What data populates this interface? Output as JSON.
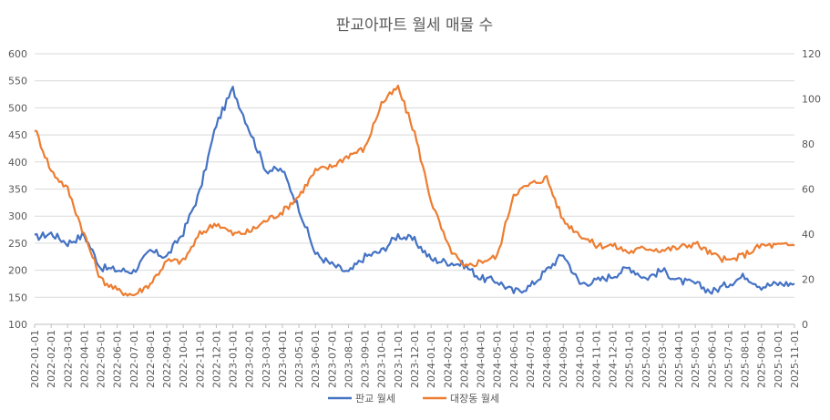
{
  "chart_data": {
    "type": "line",
    "title": "판교아파트 월세 매물 수",
    "xlabel": "",
    "ylabel": "",
    "x": [
      "2022-01-01",
      "2022-02-01",
      "2022-03-01",
      "2022-04-01",
      "2022-05-01",
      "2022-06-01",
      "2022-07-01",
      "2022-08-01",
      "2022-09-01",
      "2022-10-01",
      "2022-11-01",
      "2022-12-01",
      "2023-01-01",
      "2023-02-01",
      "2023-03-01",
      "2023-04-01",
      "2023-05-01",
      "2023-06-01",
      "2023-07-01",
      "2023-08-01",
      "2023-09-01",
      "2023-10-01",
      "2023-11-01",
      "2023-12-01",
      "2024-01-01",
      "2024-02-01",
      "2024-03-01",
      "2024-04-01",
      "2024-05-01",
      "2024-06-01",
      "2024-07-01",
      "2024-08-01",
      "2024-09-01",
      "2024-10-01",
      "2024-11-01",
      "2024-12-01",
      "2025-01-01",
      "2025-02-01",
      "2025-03-01",
      "2025-04-01",
      "2025-05-01",
      "2025-06-01",
      "2025-07-01",
      "2025-08-01",
      "2025-09-01",
      "2025-10-01",
      "2025-11-01"
    ],
    "y_left": {
      "min": 100,
      "max": 600,
      "ticks": [
        "600",
        "550",
        "500",
        "450",
        "400",
        "350",
        "300",
        "250",
        "200",
        "150",
        "100"
      ]
    },
    "y_right": {
      "min": 0,
      "max": 120,
      "ticks": [
        "120",
        "100",
        "80",
        "60",
        "40",
        "20",
        "0"
      ]
    },
    "grid": true,
    "legend_position": "bottom",
    "series": [
      {
        "name": "판교 월세",
        "axis": "left",
        "color": "#4472C4",
        "values": [
          260,
          268,
          250,
          265,
          205,
          200,
          198,
          235,
          225,
          270,
          345,
          470,
          535,
          460,
          385,
          385,
          315,
          230,
          210,
          195,
          225,
          235,
          265,
          255,
          220,
          215,
          210,
          185,
          180,
          160,
          170,
          200,
          230,
          175,
          180,
          190,
          205,
          185,
          200,
          180,
          175,
          160,
          175,
          190,
          170,
          175,
          175
        ]
      },
      {
        "name": "대장동 월세",
        "axis": "right",
        "color": "#ED7D31",
        "values": [
          87,
          68,
          60,
          40,
          20,
          15,
          13,
          18,
          28,
          28,
          40,
          45,
          40,
          41,
          46,
          50,
          57,
          68,
          70,
          75,
          78,
          98,
          105,
          85,
          55,
          35,
          25,
          28,
          30,
          58,
          62,
          65,
          46,
          40,
          35,
          35,
          32,
          34,
          33,
          34,
          36,
          31,
          28,
          31,
          35,
          35,
          35
        ]
      }
    ]
  }
}
